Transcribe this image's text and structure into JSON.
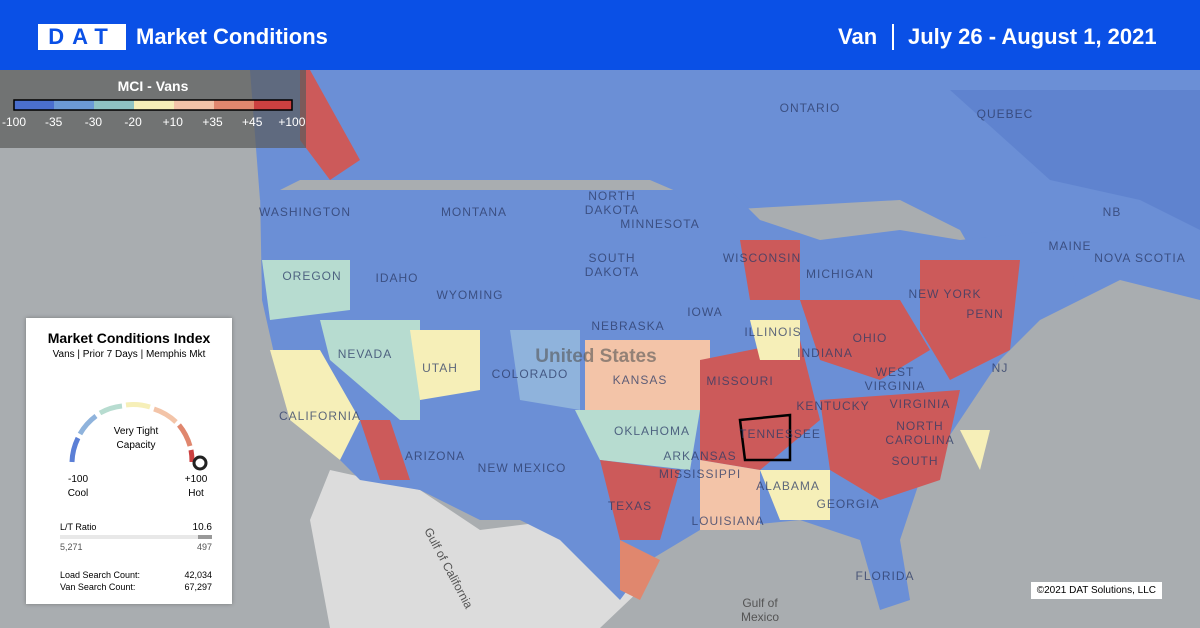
{
  "header": {
    "logo": "DAT",
    "title": "Market Conditions",
    "equipment": "Van",
    "date_range": "July 26 - August 1, 2021"
  },
  "legend": {
    "title": "MCI - Vans",
    "labels": [
      "-100",
      "-35",
      "-30",
      "-20",
      "+10",
      "+35",
      "+45",
      "+100"
    ]
  },
  "card": {
    "title": "Market Conditions Index",
    "subtitle": "Vans | Prior 7 Days | Memphis Mkt",
    "status": [
      "Very Tight",
      "Capacity"
    ],
    "min_label": "-100",
    "min_caption": "Cool",
    "max_label": "+100",
    "max_caption": "Hot",
    "ratio_label": "L/T Ratio",
    "ratio_value": "10.6",
    "loads": "5,271",
    "trucks": "497",
    "load_search_label": "Load Search Count:",
    "load_search_value": "42,034",
    "van_search_label": "Van Search Count:",
    "van_search_value": "67,297"
  },
  "map": {
    "labels": [
      "ONTARIO",
      "QUEBEC",
      [
        "NORTH",
        "DAKOTA"
      ],
      "MONTANA",
      "WASHINGTON",
      "OREGON",
      "IDAHO",
      "WYOMING",
      [
        "SOUTH",
        "DAKOTA"
      ],
      "NEBRASKA",
      "MINNESOTA",
      "IOWA",
      "WISCONSIN",
      "MICHIGAN",
      "ILLINOIS",
      "INDIANA",
      "OHIO",
      "NEW YORK",
      "PENN",
      "NJ",
      "MAINE",
      "NB",
      "NOVA SCOTIA",
      "NEVADA",
      "UTAH",
      "COLORADO",
      "KANSAS",
      "CALIFORNIA",
      "ARIZONA",
      "NEW MEXICO",
      "OKLAHOMA",
      "TEXAS",
      "MISSOURI",
      "KENTUCKY",
      [
        "WEST",
        "VIRGINIA"
      ],
      "VIRGINIA",
      [
        "NORTH",
        "CAROLINA"
      ],
      "SOUTH",
      "TENNESSEE",
      "ARKANSAS",
      "MISSISSIPPI",
      "ALABAMA",
      "GEORGIA",
      "LOUISIANA",
      "FLORIDA"
    ],
    "country": "United States",
    "gulf_california": "Gulf of California",
    "gulf_mexico": [
      "Gulf of",
      "Mexico"
    ],
    "copyright": "©2021 DAT Solutions, LLC"
  }
}
